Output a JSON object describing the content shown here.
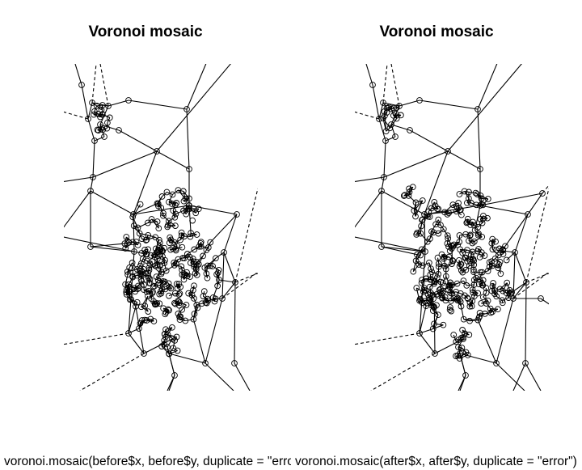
{
  "panels": [
    {
      "title": "Voronoi mosaic",
      "caption": "voronoi.mosaic(before$x, before$y, duplicate = \"error\")"
    },
    {
      "title": "Voronoi mosaic",
      "caption": "voronoi.mosaic(after$x, after$y, duplicate = \"error\")"
    }
  ],
  "colors": {
    "line": "#000000",
    "background": "#ffffff"
  }
}
